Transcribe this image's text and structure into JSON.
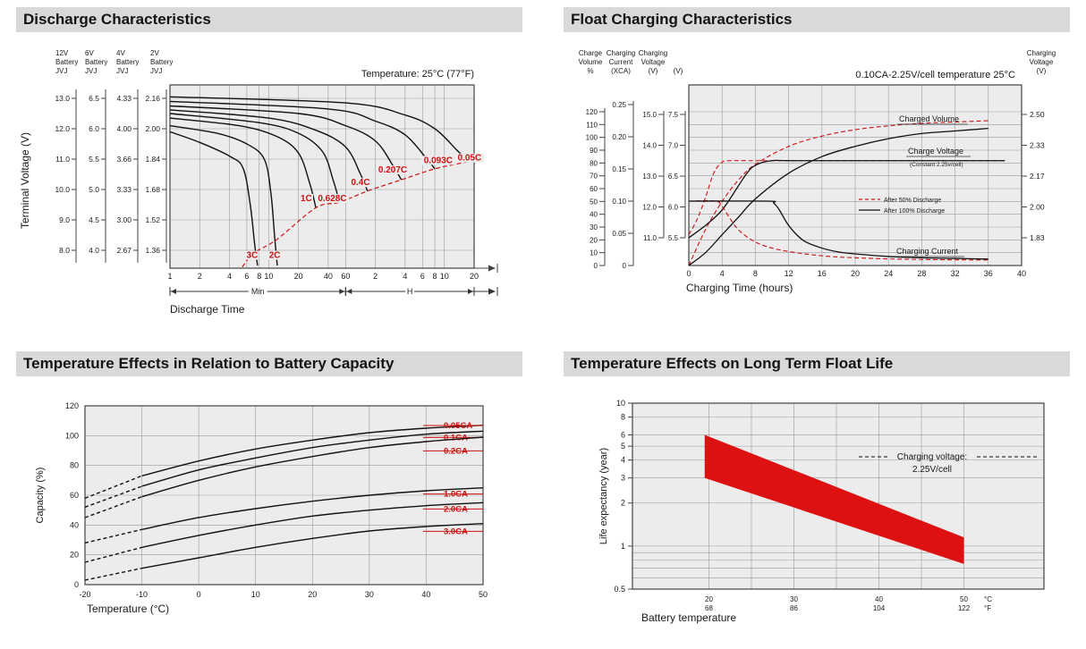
{
  "sections": {
    "discharge": {
      "title": "Discharge Characteristics"
    },
    "float_charging": {
      "title": "Float Charging Characteristics"
    },
    "temp_capacity": {
      "title": "Temperature Effects in Relation to Battery Capacity"
    },
    "temp_life": {
      "title": "Temperature Effects on Long Term Float Life"
    }
  },
  "chart_data": [
    {
      "id": "discharge",
      "type": "line",
      "title": "Discharge Characteristics",
      "annotation": "Temperature: 25°C (77°F)",
      "ylabel": "Terminal Voltage (V)",
      "xlabel": "Discharge Time",
      "x_sections": [
        {
          "unit": "Min",
          "ticks": [
            1,
            2,
            4,
            6,
            8,
            10,
            20,
            40,
            60
          ]
        },
        {
          "unit": "H",
          "ticks": [
            2,
            4,
            6,
            8,
            10,
            20
          ]
        }
      ],
      "voltage_scales": [
        {
          "header": "12V Battery JVJ",
          "ticks": [
            "13.0",
            "12.0",
            "11.0",
            "10.0",
            "9.0",
            "8.0"
          ]
        },
        {
          "header": "6V Battery JVJ",
          "ticks": [
            "6.5",
            "6.0",
            "5.5",
            "5.0",
            "4.5",
            "4.0"
          ]
        },
        {
          "header": "4V Battery JVJ",
          "ticks": [
            "4.33",
            "4.00",
            "3.66",
            "3.33",
            "3.00",
            "2.67"
          ]
        },
        {
          "header": "2V Battery JVJ",
          "ticks": [
            "2.16",
            "2.00",
            "1.84",
            "1.68",
            "1.52",
            "1.36"
          ]
        }
      ],
      "series": [
        {
          "name": "3C",
          "points": [
            [
              1,
              11.9
            ],
            [
              2,
              11.55
            ],
            [
              4,
              11.1
            ],
            [
              5.5,
              10.7
            ],
            [
              6.5,
              9.5
            ],
            [
              7.2,
              8.2
            ],
            [
              7.7,
              7.5
            ]
          ],
          "label_at": [
            6.8,
            7.75
          ]
        },
        {
          "name": "2C",
          "points": [
            [
              1,
              12.1
            ],
            [
              3,
              11.85
            ],
            [
              6,
              11.5
            ],
            [
              9,
              11.0
            ],
            [
              10.5,
              9.9
            ],
            [
              11.5,
              8.4
            ],
            [
              12.2,
              7.5
            ]
          ],
          "label_at": [
            11.5,
            7.75
          ]
        },
        {
          "name": "1C",
          "points": [
            [
              1,
              12.35
            ],
            [
              5,
              12.1
            ],
            [
              12,
              11.75
            ],
            [
              20,
              11.2
            ],
            [
              26,
              10.2
            ],
            [
              30,
              9.4
            ]
          ],
          "label_at": [
            24,
            9.62
          ]
        },
        {
          "name": "0.628C",
          "points": [
            [
              1,
              12.5
            ],
            [
              8,
              12.2
            ],
            [
              20,
              11.85
            ],
            [
              35,
              11.25
            ],
            [
              45,
              10.3
            ],
            [
              52,
              9.58
            ]
          ],
          "label_at": [
            44,
            9.62
          ]
        },
        {
          "name": "0.4C",
          "points": [
            [
              1,
              12.62
            ],
            [
              10,
              12.35
            ],
            [
              30,
              11.95
            ],
            [
              60,
              11.4
            ],
            [
              85,
              10.5
            ],
            [
              100,
              9.95
            ]
          ],
          "label_at": [
            85,
            10.14
          ]
        },
        {
          "name": "0.207C",
          "points": [
            [
              1,
              12.75
            ],
            [
              20,
              12.5
            ],
            [
              60,
              12.1
            ],
            [
              120,
              11.6
            ],
            [
              180,
              10.8
            ],
            [
              220,
              10.32
            ]
          ],
          "label_at": [
            180,
            10.56
          ]
        },
        {
          "name": "0.093C",
          "points": [
            [
              1,
              12.9
            ],
            [
              40,
              12.65
            ],
            [
              120,
              12.25
            ],
            [
              240,
              11.8
            ],
            [
              400,
              11.0
            ],
            [
              480,
              10.68
            ]
          ],
          "label_at": [
            520,
            10.87
          ]
        },
        {
          "name": "0.05C",
          "points": [
            [
              1,
              13.05
            ],
            [
              60,
              12.85
            ],
            [
              240,
              12.45
            ],
            [
              480,
              12.0
            ],
            [
              800,
              11.3
            ],
            [
              1050,
              10.92
            ]
          ],
          "label_at": [
            1080,
            10.95
          ]
        }
      ],
      "cutoff_curve": [
        [
          5.4,
          7.45
        ],
        [
          7,
          7.9
        ],
        [
          12,
          8.35
        ],
        [
          30,
          9.4
        ],
        [
          52,
          9.58
        ],
        [
          100,
          9.95
        ],
        [
          220,
          10.32
        ],
        [
          480,
          10.68
        ],
        [
          1050,
          10.92
        ],
        [
          1180,
          10.98
        ]
      ]
    },
    {
      "id": "float_charging",
      "type": "line",
      "title": "Float Charging Characteristics",
      "subtitle": "0.10CA-2.25V/cell  temperature 25°C",
      "xlabel": "Charging Time (hours)",
      "x_ticks": [
        0,
        4,
        8,
        12,
        16,
        20,
        24,
        28,
        32,
        36,
        40
      ],
      "left_scales": [
        {
          "header": "Charge Volume %",
          "ticks": [
            "120",
            "110",
            "100",
            "90",
            "80",
            "70",
            "60",
            "50",
            "40",
            "30",
            "20",
            "10",
            "0"
          ]
        },
        {
          "header": "Charging Current (XCA)",
          "ticks": [
            "0.25",
            "0.20",
            "0.15",
            "0.10",
            "0.05",
            "0"
          ]
        },
        {
          "header": "Charging Voltage (V)",
          "ticks": [
            "15.0",
            "14.0",
            "13.0",
            "12.0",
            "11.0"
          ]
        },
        {
          "header": "(V)",
          "ticks": [
            "7.5",
            "7.0",
            "6.5",
            "6.0",
            "5.5"
          ]
        }
      ],
      "right_scale": {
        "header": "Charging Voltage (V)",
        "ticks": [
          "2.50",
          "2.33",
          "2.17",
          "2.00",
          "1.83"
        ]
      },
      "legend": [
        {
          "label": "After  50% Discharge",
          "style": "dashed-red"
        },
        {
          "label": "After 100% Discharge",
          "style": "solid-black"
        }
      ],
      "curve_labels": {
        "charged_volume": "Charged Volume",
        "charge_voltage": "Charge Voltage",
        "constant": "(Constant 2.25v/cell)",
        "charging_current": "Charging Current"
      },
      "series": [
        {
          "name": "charged-volume-50",
          "axis": "volume",
          "style": "dashed-red",
          "points": [
            [
              0,
              0
            ],
            [
              2,
              28
            ],
            [
              4,
              50
            ],
            [
              6,
              67
            ],
            [
              8,
              79
            ],
            [
              12,
              93
            ],
            [
              16,
              101
            ],
            [
              20,
              106
            ],
            [
              24,
              109
            ],
            [
              28,
              111
            ],
            [
              32,
              112
            ],
            [
              36,
              113
            ]
          ]
        },
        {
          "name": "charged-volume-100",
          "axis": "volume",
          "style": "solid-black",
          "points": [
            [
              0,
              0
            ],
            [
              2,
              10
            ],
            [
              4,
              24
            ],
            [
              6,
              38
            ],
            [
              8,
              52
            ],
            [
              12,
              72
            ],
            [
              16,
              85
            ],
            [
              20,
              93
            ],
            [
              24,
              99
            ],
            [
              28,
              103
            ],
            [
              32,
              105
            ],
            [
              36,
              107
            ]
          ]
        },
        {
          "name": "charge-voltage-50",
          "axis": "voltage",
          "style": "dashed-red",
          "points": [
            [
              0,
              11.1
            ],
            [
              1,
              11.6
            ],
            [
              2,
              12.3
            ],
            [
              3,
              13.1
            ],
            [
              4,
              13.45
            ],
            [
              5,
              13.5
            ],
            [
              8,
              13.5
            ],
            [
              20,
              13.5
            ],
            [
              38,
              13.5
            ]
          ]
        },
        {
          "name": "charge-voltage-100",
          "axis": "voltage",
          "style": "solid-black",
          "points": [
            [
              0,
              11.0
            ],
            [
              2,
              11.4
            ],
            [
              4,
              11.9
            ],
            [
              6,
              12.7
            ],
            [
              7,
              13.1
            ],
            [
              8,
              13.35
            ],
            [
              10,
              13.5
            ],
            [
              14,
              13.5
            ],
            [
              38,
              13.5
            ]
          ]
        },
        {
          "name": "charging-current-50",
          "axis": "current",
          "style": "dashed-red",
          "points": [
            [
              0,
              0.1
            ],
            [
              3.2,
              0.1
            ],
            [
              4,
              0.092
            ],
            [
              5,
              0.072
            ],
            [
              6,
              0.055
            ],
            [
              7.5,
              0.04
            ],
            [
              9,
              0.031
            ],
            [
              11,
              0.024
            ],
            [
              14,
              0.018
            ],
            [
              17,
              0.014
            ],
            [
              20,
              0.012
            ],
            [
              25,
              0.01
            ],
            [
              30,
              0.009
            ],
            [
              36,
              0.0085
            ]
          ]
        },
        {
          "name": "charging-current-100",
          "axis": "current",
          "style": "solid-black",
          "points": [
            [
              0,
              0.1
            ],
            [
              9.5,
              0.1
            ],
            [
              10.2,
              0.097
            ],
            [
              10.9,
              0.086
            ],
            [
              11.8,
              0.066
            ],
            [
              12.8,
              0.05
            ],
            [
              14,
              0.037
            ],
            [
              16,
              0.027
            ],
            [
              18,
              0.021
            ],
            [
              20,
              0.018
            ],
            [
              24,
              0.014
            ],
            [
              28,
              0.012
            ],
            [
              32,
              0.011
            ],
            [
              36,
              0.01
            ]
          ]
        }
      ]
    },
    {
      "id": "temp_capacity",
      "type": "line",
      "title": "Temperature Effects in Relation to Battery Capacity",
      "xlabel": "Temperature (°C)",
      "ylabel": "Capacity (%)",
      "x_ticks": [
        -20,
        -10,
        0,
        10,
        20,
        30,
        40,
        50
      ],
      "y_ticks": [
        0,
        20,
        40,
        60,
        80,
        100,
        120
      ],
      "dashed_below_c": -10,
      "series": [
        {
          "name": "0.05CA",
          "label_v": 105,
          "points": [
            [
              -20,
              58
            ],
            [
              -10,
              73
            ],
            [
              0,
              83
            ],
            [
              10,
              91
            ],
            [
              20,
              97
            ],
            [
              30,
              102
            ],
            [
              40,
              105
            ],
            [
              50,
              107
            ]
          ]
        },
        {
          "name": "0.1CA",
          "label_v": 97,
          "points": [
            [
              -20,
              52
            ],
            [
              -10,
              66
            ],
            [
              0,
              77
            ],
            [
              10,
              85
            ],
            [
              20,
              92
            ],
            [
              30,
              97
            ],
            [
              40,
              101
            ],
            [
              50,
              103
            ]
          ]
        },
        {
          "name": "0.2CA",
          "label_v": 88,
          "points": [
            [
              -20,
              45
            ],
            [
              -10,
              59
            ],
            [
              0,
              70
            ],
            [
              10,
              79
            ],
            [
              20,
              86
            ],
            [
              30,
              92
            ],
            [
              40,
              96
            ],
            [
              50,
              99
            ]
          ]
        },
        {
          "name": "1.0CA",
          "label_v": 59,
          "points": [
            [
              -20,
              28
            ],
            [
              -10,
              37
            ],
            [
              0,
              45
            ],
            [
              10,
              51
            ],
            [
              20,
              56
            ],
            [
              30,
              60
            ],
            [
              40,
              63
            ],
            [
              50,
              65
            ]
          ]
        },
        {
          "name": "2.0CA",
          "label_v": 49,
          "points": [
            [
              -20,
              15
            ],
            [
              -10,
              25
            ],
            [
              0,
              33
            ],
            [
              10,
              40
            ],
            [
              20,
              46
            ],
            [
              30,
              50
            ],
            [
              40,
              53
            ],
            [
              50,
              55
            ]
          ]
        },
        {
          "name": "3.0CA",
          "label_v": 34,
          "points": [
            [
              -20,
              3
            ],
            [
              -10,
              11
            ],
            [
              0,
              18
            ],
            [
              10,
              25
            ],
            [
              20,
              31
            ],
            [
              30,
              36
            ],
            [
              40,
              39
            ],
            [
              50,
              41
            ]
          ]
        }
      ]
    },
    {
      "id": "temp_life",
      "type": "area",
      "title": "Temperature Effects on Long Term Float Life",
      "xlabel": "Battery temperature",
      "ylabel": "Life expectancy (year)",
      "y_ticks": [
        10,
        8,
        6,
        5,
        4,
        3,
        2,
        1,
        0.5
      ],
      "y_minor_ticks": [
        0.9,
        0.8,
        0.7,
        0.6
      ],
      "x_ticks": [
        {
          "c": 20,
          "f": 68
        },
        {
          "c": 30,
          "f": 86
        },
        {
          "c": 40,
          "f": 104
        },
        {
          "c": 50,
          "f": 122
        }
      ],
      "x_unit_c": "°C",
      "x_unit_f": "°F",
      "annotation": [
        "Charging voltage:",
        "2.25V/cell"
      ],
      "band": {
        "color": "#dd1111",
        "upper": [
          [
            19.5,
            6.0
          ],
          [
            50,
            1.15
          ]
        ],
        "lower": [
          [
            19.5,
            3.0
          ],
          [
            50,
            0.75
          ]
        ]
      }
    }
  ]
}
